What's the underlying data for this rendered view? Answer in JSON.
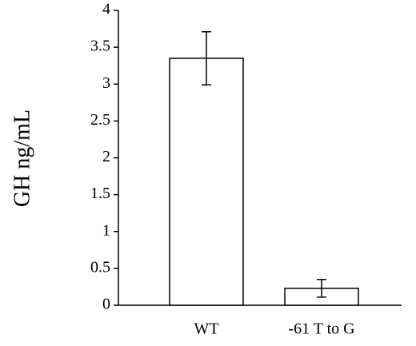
{
  "chart_data": {
    "type": "bar",
    "y_label": "GH ng/mL",
    "categories": [
      "WT",
      "-61 T to G"
    ],
    "values": [
      3.35,
      0.23
    ],
    "errors": [
      0.36,
      0.12
    ],
    "color": "#ffffff",
    "ylim": [
      0,
      4
    ],
    "yticks": [
      0,
      0.5,
      1,
      1.5,
      2,
      2.5,
      3,
      3.5,
      4
    ],
    "grid": false
  }
}
